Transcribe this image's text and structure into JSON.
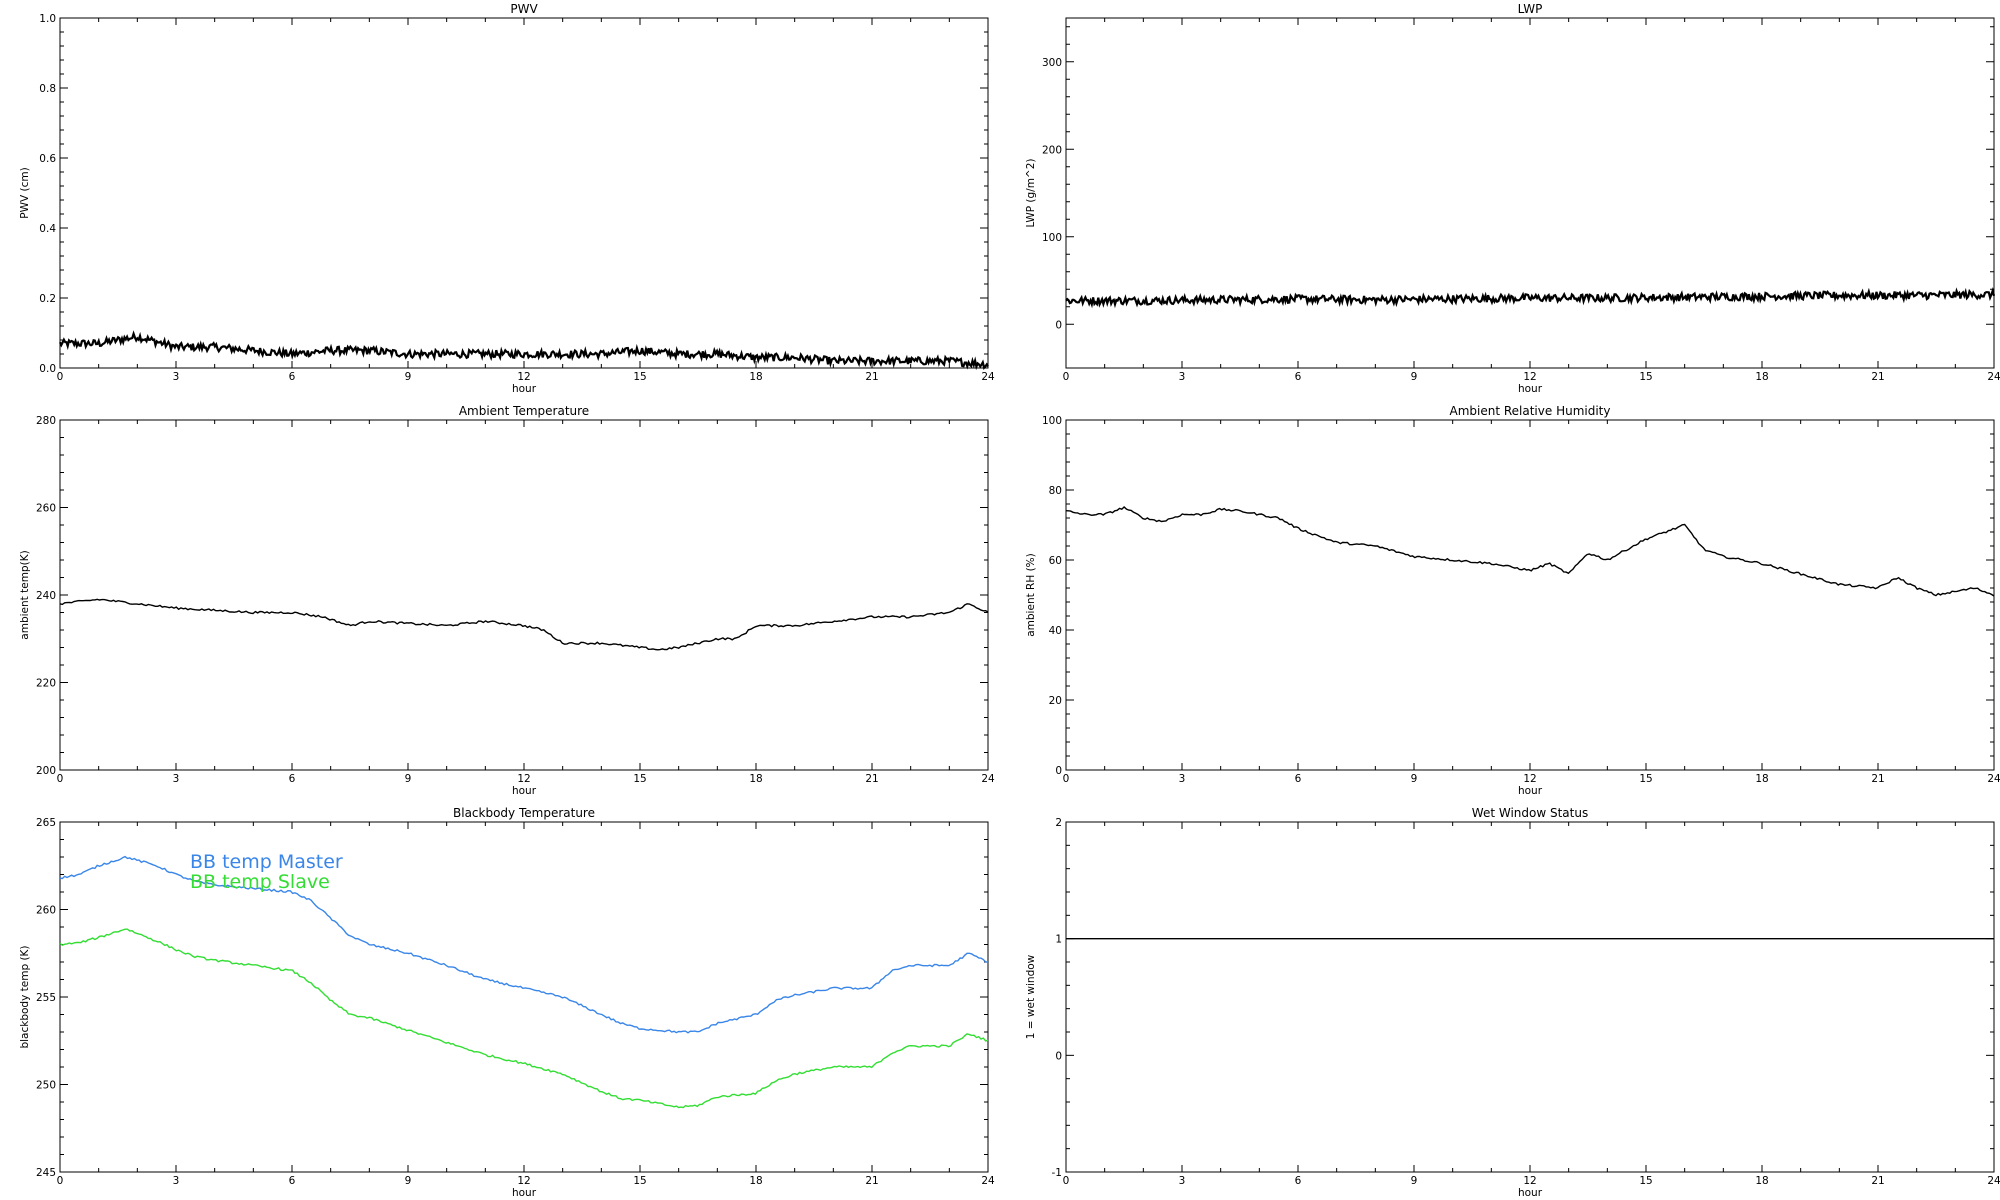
{
  "chart_data": [
    {
      "type": "line",
      "title": "PWV",
      "xlabel": "hour",
      "ylabel": "PWV (cm)",
      "xlim": [
        0,
        24
      ],
      "ylim": [
        0,
        1.0
      ],
      "x_ticks": [
        "0",
        "3",
        "6",
        "9",
        "12",
        "15",
        "18",
        "21",
        "24"
      ],
      "y_ticks": [
        "0.0",
        "0.2",
        "0.4",
        "0.6",
        "0.8",
        "1.0"
      ],
      "noisy": true,
      "series": [
        {
          "color": "#000000",
          "x": [
            0,
            1,
            2,
            3,
            4,
            5,
            6,
            7,
            8,
            9,
            10,
            11,
            12,
            13,
            14,
            15,
            16,
            17,
            18,
            19,
            20,
            21,
            22,
            23,
            24
          ],
          "y": [
            0.07,
            0.07,
            0.09,
            0.06,
            0.06,
            0.05,
            0.04,
            0.05,
            0.05,
            0.04,
            0.04,
            0.04,
            0.04,
            0.04,
            0.04,
            0.05,
            0.04,
            0.04,
            0.03,
            0.03,
            0.02,
            0.02,
            0.02,
            0.02,
            0.01
          ]
        }
      ]
    },
    {
      "type": "line",
      "title": "LWP",
      "xlabel": "hour",
      "ylabel": "LWP (g/m^2)",
      "xlim": [
        0,
        24
      ],
      "ylim": [
        -50,
        350
      ],
      "x_ticks": [
        "0",
        "3",
        "6",
        "9",
        "12",
        "15",
        "18",
        "21",
        "24"
      ],
      "y_ticks": [
        "0",
        "100",
        "200",
        "300"
      ],
      "noisy": true,
      "series": [
        {
          "color": "#000000",
          "x": [
            0,
            2,
            4,
            6,
            8,
            10,
            12,
            14,
            16,
            18,
            20,
            22,
            24
          ],
          "y": [
            27,
            27,
            28,
            29,
            28,
            29,
            30,
            30,
            31,
            32,
            33,
            33,
            34
          ]
        }
      ]
    },
    {
      "type": "line",
      "title": "Ambient Temperature",
      "xlabel": "hour",
      "ylabel": "ambient temp(K)",
      "xlim": [
        0,
        24
      ],
      "ylim": [
        200,
        280
      ],
      "x_ticks": [
        "0",
        "3",
        "6",
        "9",
        "12",
        "15",
        "18",
        "21",
        "24"
      ],
      "y_ticks": [
        "200",
        "220",
        "240",
        "260",
        "280"
      ],
      "series": [
        {
          "color": "#000000",
          "x": [
            0,
            1,
            2,
            3,
            4,
            5,
            6,
            6.8,
            7.5,
            8,
            9,
            10,
            11,
            12,
            12.5,
            13,
            14,
            15,
            15.5,
            16,
            17,
            17.5,
            18,
            19,
            20,
            21,
            22,
            23,
            23.5,
            24
          ],
          "y": [
            238,
            239,
            238,
            237,
            236.5,
            236,
            236,
            235,
            233,
            234,
            233.5,
            233,
            234,
            233,
            232,
            229,
            229,
            228,
            227.5,
            228,
            230,
            230,
            233,
            233,
            234,
            235,
            235,
            236,
            238,
            236
          ]
        }
      ]
    },
    {
      "type": "line",
      "title": "Ambient Relative Humidity",
      "xlabel": "hour",
      "ylabel": "ambient RH (%)",
      "xlim": [
        0,
        24
      ],
      "ylim": [
        0,
        100
      ],
      "x_ticks": [
        "0",
        "3",
        "6",
        "9",
        "12",
        "15",
        "18",
        "21",
        "24"
      ],
      "y_ticks": [
        "0",
        "20",
        "40",
        "60",
        "80",
        "100"
      ],
      "series": [
        {
          "color": "#000000",
          "x": [
            0,
            0.5,
            1,
            1.5,
            2,
            2.5,
            3,
            3.5,
            4,
            4.5,
            5,
            5.5,
            6,
            6.5,
            7,
            8,
            9,
            10,
            11,
            12,
            12.5,
            13,
            13.5,
            14,
            14.5,
            15,
            15.5,
            16,
            16.5,
            17,
            18,
            19,
            20,
            21,
            21.5,
            22,
            22.5,
            23,
            23.5,
            24
          ],
          "y": [
            74,
            73,
            73,
            75,
            72,
            71,
            73,
            73,
            74.5,
            74,
            73,
            72,
            69,
            67,
            65,
            64,
            61,
            60,
            59,
            57,
            59,
            56,
            62,
            60,
            63,
            66,
            68,
            70,
            63,
            61,
            59,
            56,
            53,
            52,
            55,
            52,
            50,
            51,
            52,
            50
          ]
        }
      ]
    },
    {
      "type": "line",
      "title": "Blackbody Temperature",
      "xlabel": "hour",
      "ylabel": "blackbody temp (K)",
      "xlim": [
        0,
        24
      ],
      "ylim": [
        245,
        265
      ],
      "x_ticks": [
        "0",
        "3",
        "6",
        "9",
        "12",
        "15",
        "18",
        "21",
        "24"
      ],
      "y_ticks": [
        "245",
        "250",
        "255",
        "260",
        "265"
      ],
      "legend": [
        "BB temp Master",
        "BB temp Slave"
      ],
      "series": [
        {
          "name": "BB temp Master",
          "color": "#3a86e8",
          "x": [
            0,
            0.5,
            1,
            1.7,
            2.5,
            3,
            3.5,
            4,
            5,
            6,
            6.5,
            7,
            7.5,
            8,
            9,
            10,
            11,
            12,
            13,
            14,
            14.5,
            15,
            16,
            16.5,
            17,
            18,
            18.5,
            19,
            20,
            21,
            21.5,
            22,
            23,
            23.5,
            24
          ],
          "y": [
            261.8,
            262.0,
            262.5,
            263.0,
            262.5,
            262.0,
            261.6,
            261.4,
            261.2,
            261.0,
            260.5,
            259.5,
            258.5,
            258.0,
            257.5,
            256.8,
            256.0,
            255.5,
            255.0,
            254.0,
            253.5,
            253.2,
            253.0,
            253.0,
            253.5,
            254.0,
            254.8,
            255.1,
            255.5,
            255.5,
            256.5,
            256.8,
            256.8,
            257.5,
            257.0
          ]
        },
        {
          "name": "BB temp Slave",
          "color": "#33dd33",
          "x": [
            0,
            0.5,
            1,
            1.7,
            2.5,
            3,
            3.5,
            4,
            5,
            6,
            6.5,
            7,
            7.5,
            8,
            9,
            10,
            11,
            12,
            13,
            14,
            14.5,
            15,
            16,
            16.5,
            17,
            18,
            18.5,
            19,
            20,
            21,
            21.5,
            22,
            23,
            23.5,
            24
          ],
          "y": [
            258.0,
            258.1,
            258.4,
            258.9,
            258.2,
            257.7,
            257.3,
            257.1,
            256.8,
            256.5,
            255.8,
            254.8,
            254.0,
            253.8,
            253.1,
            252.4,
            251.7,
            251.2,
            250.6,
            249.6,
            249.2,
            249.1,
            248.7,
            248.8,
            249.3,
            249.5,
            250.2,
            250.6,
            251.0,
            251.0,
            251.8,
            252.2,
            252.2,
            252.9,
            252.5
          ]
        }
      ]
    },
    {
      "type": "line",
      "title": "Wet Window Status",
      "xlabel": "hour",
      "ylabel": "1 = wet window",
      "xlim": [
        0,
        24
      ],
      "ylim": [
        -1,
        2
      ],
      "x_ticks": [
        "0",
        "3",
        "6",
        "9",
        "12",
        "15",
        "18",
        "21",
        "24"
      ],
      "y_ticks": [
        "-1",
        "0",
        "1",
        "2"
      ],
      "series": [
        {
          "color": "#000000",
          "x": [
            0,
            24
          ],
          "y": [
            1,
            1
          ]
        }
      ]
    }
  ]
}
